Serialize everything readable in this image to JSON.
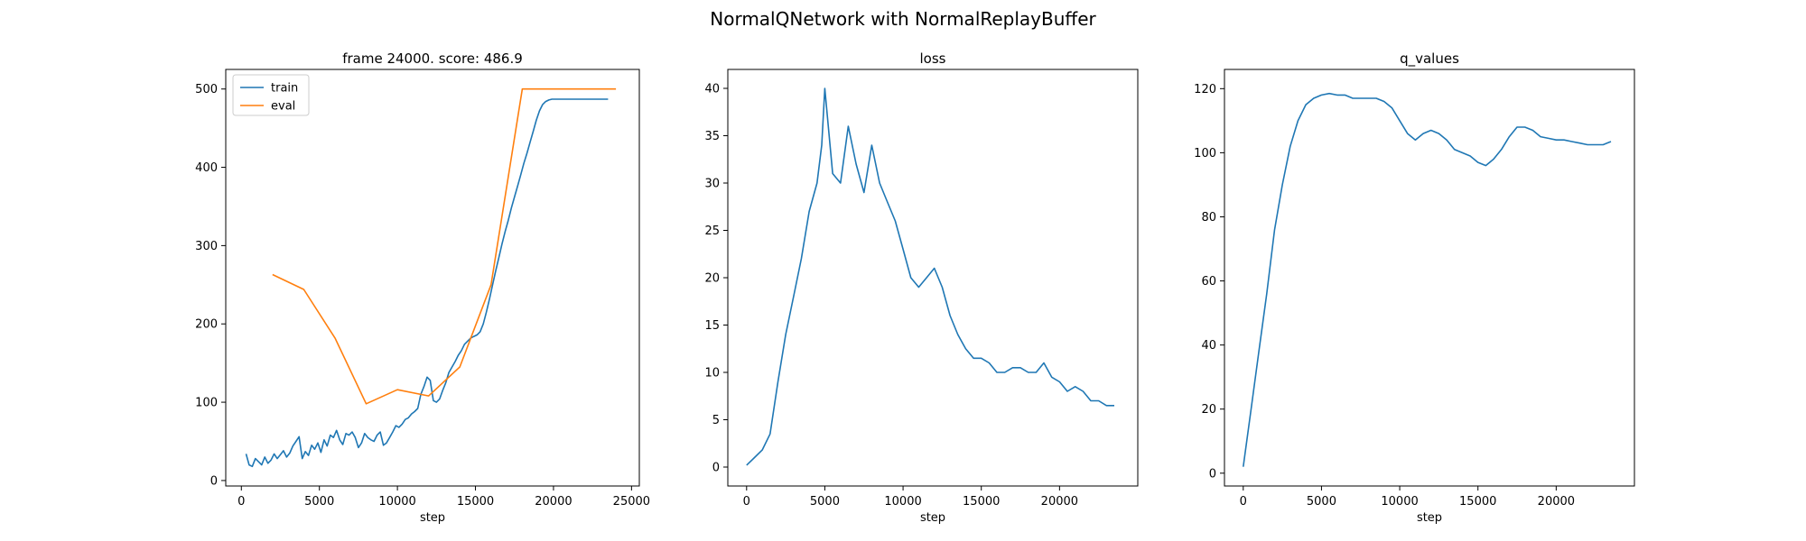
{
  "figure": {
    "title": "NormalQNetwork with NormalReplayBuffer"
  },
  "colors": {
    "train": "#1f77b4",
    "eval": "#ff7f0e",
    "loss": "#1f77b4",
    "q_values": "#1f77b4"
  },
  "chart_data": [
    {
      "type": "line",
      "title": "frame 24000. score: 486.9",
      "xlabel": "step",
      "ylabel": "",
      "xlim": [
        -1000,
        25500
      ],
      "ylim": [
        -7,
        525
      ],
      "xticks": [
        0,
        5000,
        10000,
        15000,
        20000,
        25000
      ],
      "yticks": [
        0,
        100,
        200,
        300,
        400,
        500
      ],
      "legend": "top-left",
      "series": [
        {
          "name": "train",
          "color": "#1f77b4",
          "x": [
            300,
            500,
            700,
            900,
            1100,
            1300,
            1500,
            1700,
            1900,
            2100,
            2300,
            2500,
            2700,
            2900,
            3100,
            3300,
            3500,
            3700,
            3900,
            4100,
            4300,
            4500,
            4700,
            4900,
            5100,
            5300,
            5500,
            5700,
            5900,
            6100,
            6300,
            6500,
            6700,
            6900,
            7100,
            7300,
            7500,
            7700,
            7900,
            8100,
            8300,
            8500,
            8700,
            8900,
            9100,
            9300,
            9500,
            9700,
            9900,
            10100,
            10300,
            10500,
            10700,
            10900,
            11100,
            11300,
            11500,
            11700,
            11900,
            12100,
            12300,
            12500,
            12700,
            12900,
            13100,
            13300,
            13500,
            13700,
            13900,
            14100,
            14300,
            14500,
            14700,
            14900,
            15100,
            15300,
            15500,
            15700,
            15900,
            16100,
            16300,
            16500,
            16700,
            16900,
            17100,
            17300,
            17500,
            17700,
            17900,
            18100,
            18300,
            18500,
            18700,
            18900,
            19100,
            19300,
            19500,
            19700,
            19900,
            20100,
            20300,
            20500,
            20700,
            20900,
            21100,
            21300,
            21500,
            21700,
            21900,
            22100,
            22300,
            22500,
            22700,
            22900,
            23100,
            23300,
            23500
          ],
          "values": [
            34,
            20,
            18,
            28,
            24,
            20,
            30,
            22,
            26,
            34,
            28,
            33,
            38,
            30,
            35,
            44,
            50,
            56,
            28,
            37,
            32,
            45,
            40,
            48,
            36,
            52,
            44,
            58,
            55,
            64,
            52,
            46,
            60,
            58,
            62,
            55,
            42,
            48,
            60,
            55,
            52,
            50,
            58,
            62,
            45,
            48,
            55,
            62,
            70,
            68,
            72,
            78,
            80,
            85,
            88,
            92,
            110,
            120,
            132,
            128,
            102,
            100,
            104,
            115,
            125,
            138,
            145,
            152,
            160,
            166,
            174,
            178,
            182,
            184,
            186,
            190,
            200,
            215,
            232,
            250,
            268,
            285,
            302,
            318,
            332,
            348,
            362,
            376,
            390,
            405,
            418,
            432,
            446,
            460,
            472,
            480,
            484,
            486,
            487,
            487,
            487,
            487,
            487,
            487,
            487,
            487,
            487,
            487,
            487,
            487,
            487,
            487,
            487,
            487,
            487,
            487,
            487
          ]
        },
        {
          "name": "eval",
          "color": "#ff7f0e",
          "x": [
            2000,
            4000,
            6000,
            8000,
            10000,
            12000,
            14000,
            16000,
            18000,
            20000,
            22000,
            24000
          ],
          "values": [
            263,
            244,
            182,
            98,
            116,
            108,
            145,
            250,
            500,
            500,
            500,
            500
          ]
        }
      ]
    },
    {
      "type": "line",
      "title": "loss",
      "xlabel": "step",
      "ylabel": "",
      "xlim": [
        -1200,
        25000
      ],
      "ylim": [
        -2,
        42
      ],
      "xticks": [
        0,
        5000,
        10000,
        15000,
        20000
      ],
      "yticks": [
        0,
        5,
        10,
        15,
        20,
        25,
        30,
        35,
        40
      ],
      "legend": "none",
      "series": [
        {
          "color": "#1f77b4",
          "x": [
            0,
            500,
            1000,
            1500,
            2000,
            2500,
            3000,
            3500,
            4000,
            4500,
            4800,
            5000,
            5500,
            6000,
            6500,
            7000,
            7500,
            8000,
            8500,
            9000,
            9500,
            10000,
            10500,
            11000,
            11500,
            12000,
            12500,
            13000,
            13500,
            14000,
            14500,
            15000,
            15500,
            16000,
            16500,
            17000,
            17500,
            18000,
            18500,
            19000,
            19500,
            20000,
            20500,
            21000,
            21500,
            22000,
            22500,
            23000,
            23500
          ],
          "values": [
            0.2,
            1.0,
            1.8,
            3.5,
            9.0,
            14.0,
            18.0,
            22.0,
            27.0,
            30.0,
            34.0,
            40.0,
            31.0,
            30.0,
            36.0,
            32.0,
            29.0,
            34.0,
            30.0,
            28.0,
            26.0,
            23.0,
            20.0,
            19.0,
            20.0,
            21.0,
            19.0,
            16.0,
            14.0,
            12.5,
            11.5,
            11.5,
            11.0,
            10.0,
            10.0,
            10.5,
            10.5,
            10.0,
            10.0,
            11.0,
            9.5,
            9.0,
            8.0,
            8.5,
            8.0,
            7.0,
            7.0,
            6.5,
            6.5
          ]
        }
      ]
    },
    {
      "type": "line",
      "title": "q_values",
      "xlabel": "step",
      "ylabel": "",
      "xlim": [
        -1200,
        25000
      ],
      "ylim": [
        -4,
        126
      ],
      "xticks": [
        0,
        5000,
        10000,
        15000,
        20000
      ],
      "yticks": [
        0,
        20,
        40,
        60,
        80,
        100,
        120
      ],
      "legend": "none",
      "series": [
        {
          "color": "#1f77b4",
          "x": [
            0,
            500,
            1000,
            1500,
            2000,
            2500,
            3000,
            3500,
            4000,
            4500,
            5000,
            5500,
            6000,
            6500,
            7000,
            7500,
            8000,
            8500,
            9000,
            9500,
            10000,
            10500,
            11000,
            11500,
            12000,
            12500,
            13000,
            13500,
            14000,
            14500,
            15000,
            15500,
            16000,
            16500,
            17000,
            17500,
            18000,
            18500,
            19000,
            19500,
            20000,
            20500,
            21000,
            21500,
            22000,
            22500,
            23000,
            23500
          ],
          "values": [
            2,
            20,
            38,
            56,
            76,
            90,
            102,
            110,
            115,
            117,
            118,
            118.5,
            118,
            118,
            117,
            117,
            117,
            117,
            116,
            114,
            110,
            106,
            104,
            106,
            107,
            106,
            104,
            101,
            100,
            99,
            97,
            96,
            98,
            101,
            105,
            108,
            108,
            107,
            105,
            104.5,
            104,
            104,
            103.5,
            103,
            102.5,
            102.5,
            102.5,
            103.5
          ]
        }
      ]
    }
  ]
}
